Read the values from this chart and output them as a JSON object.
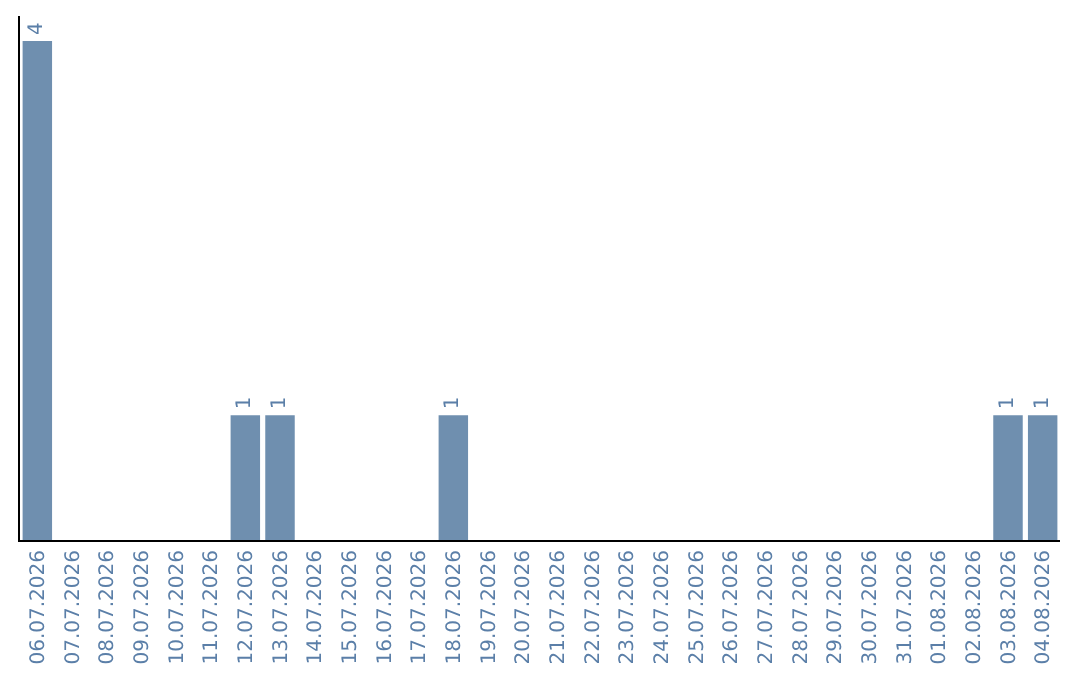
{
  "chart_data": {
    "type": "bar",
    "categories": [
      "06.07.2026",
      "07.07.2026",
      "08.07.2026",
      "09.07.2026",
      "10.07.2026",
      "11.07.2026",
      "12.07.2026",
      "13.07.2026",
      "14.07.2026",
      "15.07.2026",
      "16.07.2026",
      "17.07.2026",
      "18.07.2026",
      "19.07.2026",
      "20.07.2026",
      "21.07.2026",
      "22.07.2026",
      "23.07.2026",
      "24.07.2026",
      "25.07.2026",
      "26.07.2026",
      "27.07.2026",
      "28.07.2026",
      "29.07.2026",
      "30.07.2026",
      "31.07.2026",
      "01.08.2026",
      "02.08.2026",
      "03.08.2026",
      "04.08.2026"
    ],
    "values": [
      4,
      0,
      0,
      0,
      0,
      0,
      1,
      1,
      0,
      0,
      0,
      0,
      1,
      0,
      0,
      0,
      0,
      0,
      0,
      0,
      0,
      0,
      0,
      0,
      0,
      0,
      0,
      0,
      1,
      1
    ],
    "value_labels": [
      "4",
      null,
      null,
      null,
      null,
      null,
      "1",
      "1",
      null,
      null,
      null,
      null,
      "1",
      null,
      null,
      null,
      null,
      null,
      null,
      null,
      null,
      null,
      null,
      null,
      null,
      null,
      null,
      null,
      "1",
      "1"
    ],
    "color": "#6f8faf",
    "ylim": [
      0,
      4.2
    ]
  }
}
